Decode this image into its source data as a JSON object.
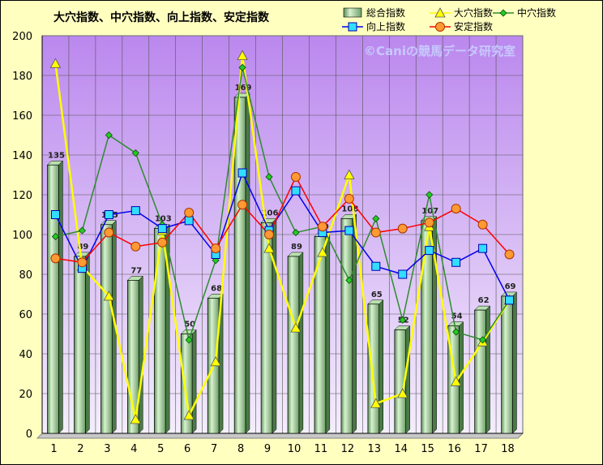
{
  "chart_data": {
    "type": "bar",
    "title": "大穴指数、中穴指数、向上指数、安定指数",
    "watermark": "©Caniの競馬データ研究室",
    "categories": [
      "1",
      "2",
      "3",
      "4",
      "5",
      "6",
      "7",
      "8",
      "9",
      "10",
      "11",
      "12",
      "13",
      "14",
      "15",
      "16",
      "17",
      "18"
    ],
    "ylim": [
      0,
      200
    ],
    "yticks": [
      0,
      20,
      40,
      60,
      80,
      100,
      120,
      140,
      160,
      180,
      200
    ],
    "grid": true,
    "legend_position": "top-right",
    "series": [
      {
        "name": "総合指数",
        "kind": "bar",
        "color": "#a8d8a0",
        "values": [
          135,
          89,
          105,
          77,
          103,
          50,
          68,
          169,
          106,
          89,
          99,
          108,
          65,
          52,
          107,
          54,
          62,
          69
        ],
        "labels": [
          "135",
          "89",
          "105",
          "77",
          "103",
          "50",
          "68",
          "169",
          "106",
          "89",
          "99",
          "108",
          "65",
          "52",
          "107",
          "54",
          "62",
          "69"
        ]
      },
      {
        "name": "大穴指数",
        "kind": "line",
        "color": "#ffff00",
        "marker": "triangle",
        "values": [
          186,
          84,
          69,
          7,
          102,
          9,
          36,
          190,
          93,
          53,
          91,
          130,
          15,
          20,
          104,
          26,
          46,
          67
        ]
      },
      {
        "name": "中穴指数",
        "kind": "line",
        "color": "#2e8b2e",
        "marker": "diamond",
        "values": [
          99,
          102,
          150,
          141,
          105,
          47,
          87,
          184,
          129,
          101,
          104,
          77,
          108,
          57,
          120,
          51,
          47,
          67
        ]
      },
      {
        "name": "向上指数",
        "kind": "line",
        "color": "#0000ee",
        "marker": "square",
        "values": [
          110,
          83,
          110,
          112,
          103,
          107,
          90,
          131,
          102,
          122,
          101,
          102,
          84,
          80,
          92,
          86,
          93,
          67
        ]
      },
      {
        "name": "安定指数",
        "kind": "line",
        "color": "#ff0000",
        "marker": "circle",
        "values": [
          88,
          86,
          101,
          94,
          96,
          111,
          93,
          115,
          100,
          129,
          104,
          118,
          101,
          103,
          106,
          113,
          105,
          90
        ]
      }
    ]
  }
}
